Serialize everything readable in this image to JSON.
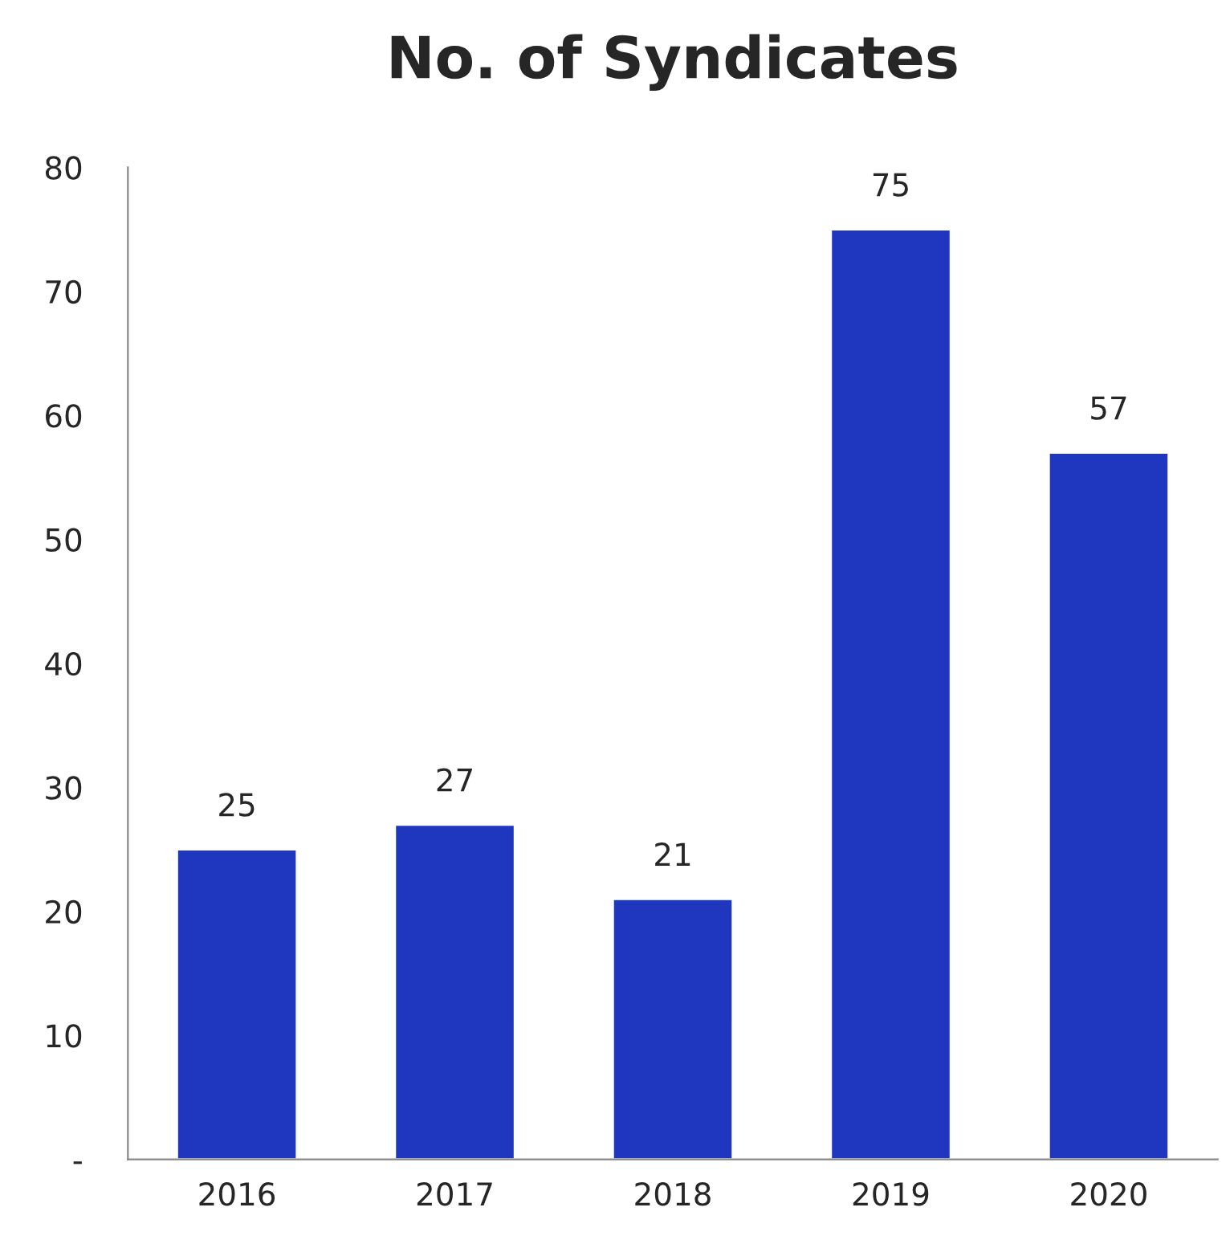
{
  "chart_data": {
    "type": "bar",
    "title": "No. of Syndicates",
    "categories": [
      "2016",
      "2017",
      "2018",
      "2019",
      "2020"
    ],
    "values": [
      25,
      27,
      21,
      75,
      57
    ],
    "color": "#1f36bf",
    "ylim": [
      0,
      80
    ],
    "yticks": [
      {
        "value": 0,
        "label": "-"
      },
      10,
      20,
      30,
      40,
      50,
      60,
      70,
      80
    ],
    "data_labels": true,
    "grid": false,
    "legend": false
  }
}
